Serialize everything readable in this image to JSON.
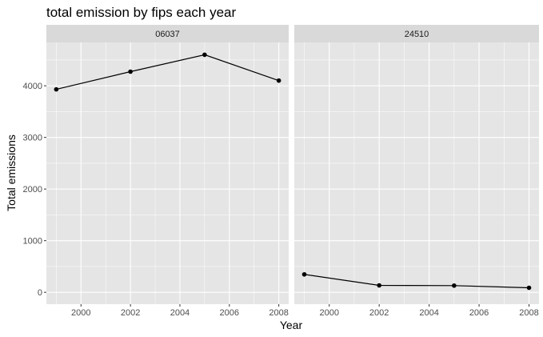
{
  "chart_data": {
    "type": "line",
    "title": "total emission by fips each year",
    "xlabel": "Year",
    "ylabel": "Total emissions",
    "xlim": [
      1998.6,
      2008.4
    ],
    "ylim": [
      -230,
      4840
    ],
    "x_ticks": [
      2000,
      2002,
      2004,
      2006,
      2008
    ],
    "x_tick_labels": [
      "2000",
      "2002",
      "2004",
      "2006",
      "2008"
    ],
    "y_ticks": [
      0,
      1000,
      2000,
      3000,
      4000
    ],
    "y_tick_labels": [
      "0",
      "1000",
      "2000",
      "3000",
      "4000"
    ],
    "grid": true,
    "legend": "none",
    "colors": {
      "panel_bg": "#e5e5e5",
      "strip_bg": "#d9d9d9",
      "grid": "#ffffff",
      "line": "#000000"
    },
    "facets": [
      {
        "label": "06037",
        "x": [
          1999,
          2002,
          2005,
          2008
        ],
        "y": [
          3931,
          4274,
          4601,
          4101
        ]
      },
      {
        "label": "24510",
        "x": [
          1999,
          2002,
          2005,
          2008
        ],
        "y": [
          347,
          134,
          130,
          88
        ]
      }
    ]
  }
}
